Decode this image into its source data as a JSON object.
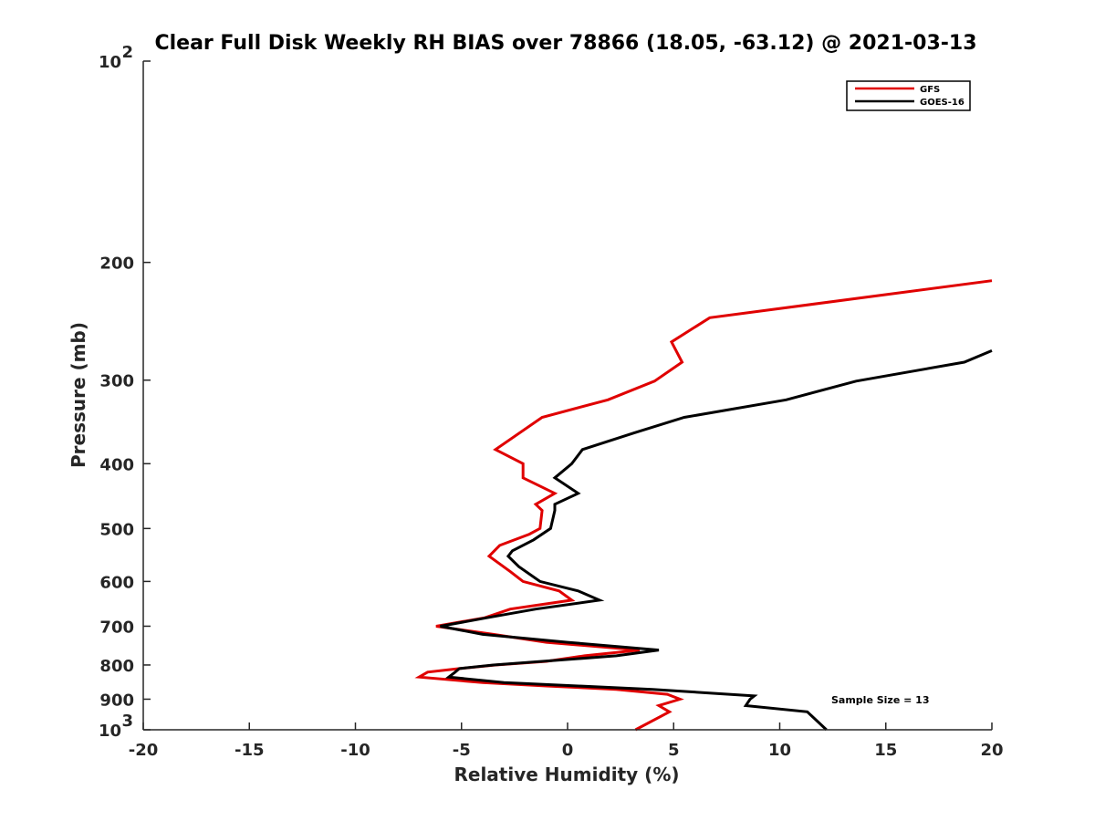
{
  "chart_data": {
    "type": "line",
    "title": "Clear Full Disk Weekly RH BIAS over 78866 (18.05, -63.12) @ 2021-03-13",
    "xlabel": "Relative Humidity (%)",
    "ylabel": "Pressure (mb)",
    "xlim": [
      -20,
      20
    ],
    "ylim": [
      100,
      1000
    ],
    "y_scale": "log",
    "y_reversed": true,
    "x_ticks": [
      "-20",
      "-15",
      "-10",
      "-5",
      "0",
      "5",
      "10",
      "15",
      "20"
    ],
    "y_ticks": [
      {
        "value": 200,
        "label": "200"
      },
      {
        "value": 300,
        "label": "300"
      },
      {
        "value": 400,
        "label": "400"
      },
      {
        "value": 500,
        "label": "500"
      },
      {
        "value": 600,
        "label": "600"
      },
      {
        "value": 700,
        "label": "700"
      },
      {
        "value": 800,
        "label": "800"
      },
      {
        "value": 900,
        "label": "900"
      }
    ],
    "y_edge_labels": [
      {
        "value": 100,
        "base": "10",
        "exp": "2"
      },
      {
        "value": 1000,
        "base": "10",
        "exp": "3"
      }
    ],
    "grid": false,
    "legend_position": "top-right",
    "annotation": "Sample Size = 13",
    "series": [
      {
        "name": "GFS",
        "color": "#e00000",
        "points": [
          [
            20.0,
            213
          ],
          [
            6.7,
            242
          ],
          [
            4.9,
            263
          ],
          [
            5.4,
            282
          ],
          [
            4.1,
            301
          ],
          [
            1.9,
            321
          ],
          [
            -1.2,
            341
          ],
          [
            -3.4,
            381
          ],
          [
            -2.1,
            400
          ],
          [
            -2.1,
            420
          ],
          [
            -0.6,
            443
          ],
          [
            -1.5,
            460
          ],
          [
            -1.2,
            470
          ],
          [
            -1.3,
            500
          ],
          [
            -1.8,
            510
          ],
          [
            -3.2,
            530
          ],
          [
            -3.7,
            550
          ],
          [
            -2.7,
            580
          ],
          [
            -2.1,
            600
          ],
          [
            -0.4,
            620
          ],
          [
            0.2,
            640
          ],
          [
            -2.7,
            660
          ],
          [
            -3.9,
            680
          ],
          [
            -6.2,
            700
          ],
          [
            -3.5,
            720
          ],
          [
            -1.0,
            740
          ],
          [
            3.4,
            760
          ],
          [
            0.8,
            775
          ],
          [
            -1.0,
            790
          ],
          [
            -3.4,
            800
          ],
          [
            -5.1,
            810
          ],
          [
            -6.6,
            820
          ],
          [
            -7.0,
            834
          ],
          [
            -4.0,
            850
          ],
          [
            -1.0,
            860
          ],
          [
            2.3,
            870
          ],
          [
            4.7,
            885
          ],
          [
            5.3,
            900
          ],
          [
            4.3,
            920
          ],
          [
            4.8,
            940
          ],
          [
            3.2,
            1000
          ]
        ]
      },
      {
        "name": "GOES-16",
        "color": "#000000",
        "points": [
          [
            20.0,
            271
          ],
          [
            18.7,
            282
          ],
          [
            13.6,
            301
          ],
          [
            10.3,
            321
          ],
          [
            5.5,
            341
          ],
          [
            3.1,
            360
          ],
          [
            0.7,
            381
          ],
          [
            0.2,
            400
          ],
          [
            -0.6,
            420
          ],
          [
            0.5,
            443
          ],
          [
            -0.6,
            460
          ],
          [
            -0.6,
            470
          ],
          [
            -0.8,
            500
          ],
          [
            -1.6,
            520
          ],
          [
            -2.6,
            540
          ],
          [
            -2.8,
            550
          ],
          [
            -2.3,
            570
          ],
          [
            -1.3,
            600
          ],
          [
            0.5,
            620
          ],
          [
            1.5,
            640
          ],
          [
            -1.5,
            660
          ],
          [
            -3.8,
            680
          ],
          [
            -6.0,
            700
          ],
          [
            -4.0,
            720
          ],
          [
            0.0,
            740
          ],
          [
            4.3,
            760
          ],
          [
            2.3,
            775
          ],
          [
            -1.2,
            790
          ],
          [
            -3.5,
            800
          ],
          [
            -5.1,
            810
          ],
          [
            -5.3,
            820
          ],
          [
            -5.6,
            834
          ],
          [
            -3.0,
            850
          ],
          [
            0.5,
            860
          ],
          [
            4.0,
            870
          ],
          [
            8.8,
            890
          ],
          [
            8.6,
            900
          ],
          [
            8.4,
            920
          ],
          [
            11.3,
            940
          ],
          [
            12.2,
            1000
          ]
        ]
      }
    ]
  }
}
